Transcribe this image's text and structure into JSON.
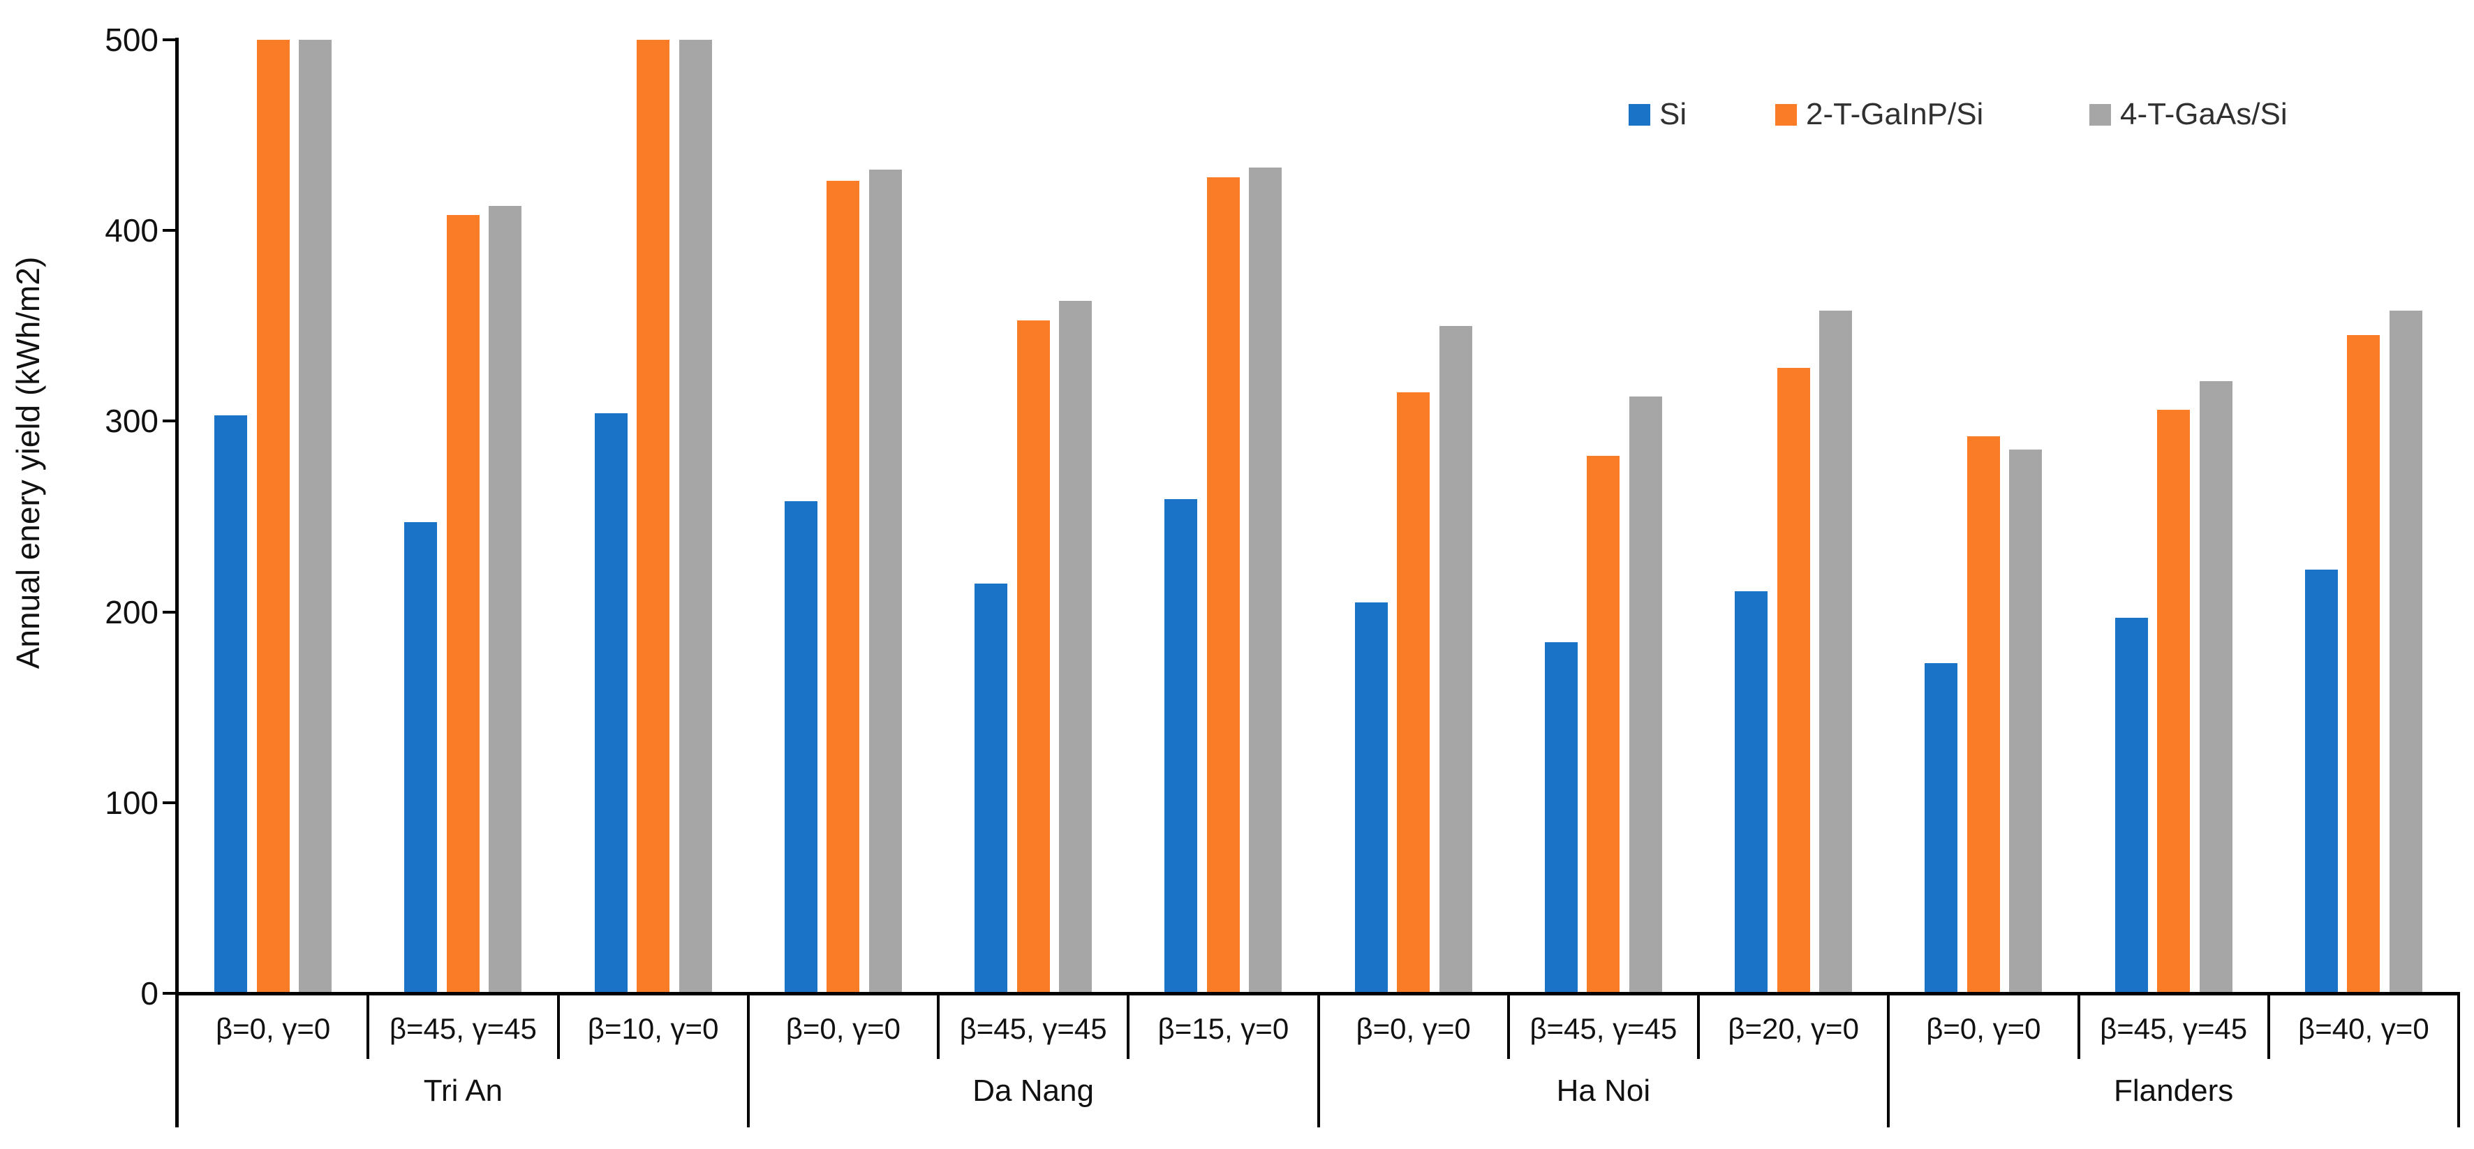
{
  "chart_data": {
    "type": "bar",
    "title": "",
    "ylabel": "Annual enery yield (kWh/m2)",
    "units": "kWh/m2",
    "ylim": [
      0,
      500
    ],
    "yticks": [
      0,
      100,
      200,
      300,
      400,
      500
    ],
    "grid": false,
    "legend_position": "top-right",
    "axis_color": "#000000",
    "categories": [
      {
        "city": "Tri An",
        "subgroups": [
          "β=0, γ=0",
          "β=45, γ=45",
          "β=10, γ=0"
        ]
      },
      {
        "city": "Da Nang",
        "subgroups": [
          "β=0, γ=0",
          "β=45, γ=45",
          "β=15, γ=0"
        ]
      },
      {
        "city": "Ha Noi",
        "subgroups": [
          "β=0, γ=0",
          "β=45, γ=45",
          "β=20, γ=0"
        ]
      },
      {
        "city": "Flanders",
        "subgroups": [
          "β=0, γ=0",
          "β=45, γ=45",
          "β=40, γ=0"
        ]
      }
    ],
    "series": [
      {
        "name": "Si",
        "color": "#1B73C8",
        "values": [
          [
            303,
            247,
            304
          ],
          [
            258,
            215,
            259
          ],
          [
            205,
            184,
            211
          ],
          [
            173,
            197,
            222
          ]
        ]
      },
      {
        "name": "2-T-GaInP/Si",
        "color": "#FB7C27",
        "values": [
          [
            500,
            408,
            500
          ],
          [
            426,
            353,
            428
          ],
          [
            315,
            282,
            328
          ],
          [
            292,
            306,
            345
          ]
        ]
      },
      {
        "name": "4-T-GaAs/Si",
        "color": "#A6A6A6",
        "values": [
          [
            500,
            413,
            500
          ],
          [
            432,
            363,
            433
          ],
          [
            350,
            313,
            358
          ],
          [
            285,
            321,
            358
          ]
        ]
      }
    ]
  }
}
